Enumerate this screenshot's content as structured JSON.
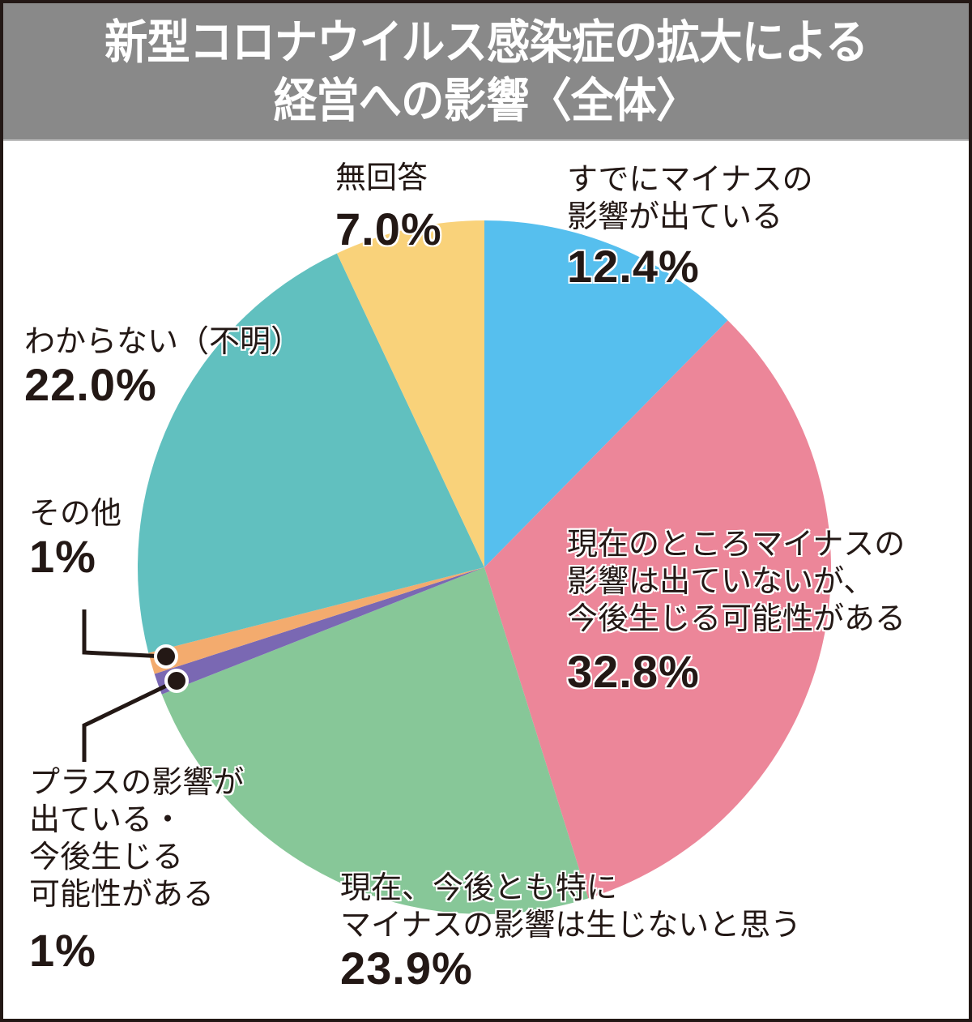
{
  "header": {
    "title_line1": "新型コロナウイルス感染症の拡大による",
    "title_line2": "経営への影響〈全体〉"
  },
  "colors": {
    "header_bg": "#898989",
    "border": "#231815",
    "already_negative": "#56BFEE",
    "future_negative": "#EC8699",
    "no_negative": "#87C798",
    "positive": "#7A68B3",
    "other": "#F3AB6E",
    "unknown": "#61C0BF",
    "no_answer": "#F9D27A"
  },
  "labels": {
    "already_negative": {
      "lines": [
        "すでにマイナスの",
        "影響が出ている"
      ],
      "pct": "12.4%"
    },
    "future_negative": {
      "lines": [
        "現在のところマイナスの",
        "影響は出ていないが、",
        "今後生じる可能性がある"
      ],
      "pct": "32.8%"
    },
    "no_negative": {
      "lines": [
        "現在、今後とも特に",
        "マイナスの影響は生じないと思う"
      ],
      "pct": "23.9%"
    },
    "positive": {
      "lines": [
        "プラスの影響が",
        "出ている・",
        "今後生じる",
        "可能性がある"
      ],
      "pct": "1%"
    },
    "other": {
      "lines": [
        "その他"
      ],
      "pct": "1%"
    },
    "unknown": {
      "lines": [
        "わからない（不明）"
      ],
      "pct": "22.0%"
    },
    "no_answer": {
      "lines": [
        "無回答"
      ],
      "pct": "7.0%"
    }
  },
  "chart_data": {
    "type": "pie",
    "title": "新型コロナウイルス感染症の拡大による経営への影響〈全体〉",
    "start_angle": "12 o'clock",
    "direction": "clockwise",
    "categories": [
      "すでにマイナスの影響が出ている",
      "現在のところマイナスの影響は出ていないが、今後生じる可能性がある",
      "現在、今後とも特にマイナスの影響は生じないと思う",
      "プラスの影響が出ている・今後生じる可能性がある",
      "その他",
      "わからない（不明）",
      "無回答"
    ],
    "values": [
      12.4,
      32.8,
      23.9,
      1,
      1,
      22.0,
      7.0
    ],
    "unit": "%",
    "colors": [
      "#56BFEE",
      "#EC8699",
      "#87C798",
      "#7A68B3",
      "#F3AB6E",
      "#61C0BF",
      "#F9D27A"
    ],
    "legend": "none (direct labels)"
  }
}
